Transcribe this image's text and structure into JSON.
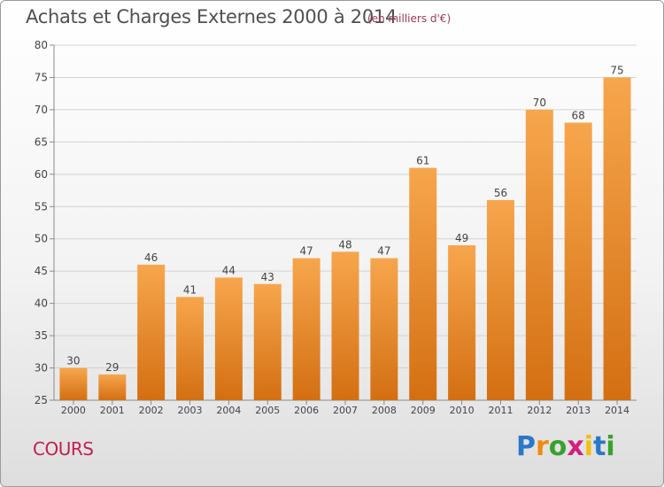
{
  "chart_data": {
    "type": "bar",
    "title": "Achats et Charges Externes 2000 à 2014",
    "unit_note": "(en milliers d'€)",
    "categories": [
      "2000",
      "2001",
      "2002",
      "2003",
      "2004",
      "2005",
      "2006",
      "2007",
      "2008",
      "2009",
      "2010",
      "2011",
      "2012",
      "2013",
      "2014"
    ],
    "values": [
      30,
      29,
      46,
      41,
      44,
      43,
      47,
      48,
      47,
      61,
      49,
      56,
      70,
      68,
      75
    ],
    "ylim": [
      25,
      80
    ],
    "yticks": [
      25,
      30,
      35,
      40,
      45,
      50,
      55,
      60,
      65,
      70,
      75,
      80
    ],
    "grid": true,
    "bar_color": "#f0a040"
  },
  "commune": "COURS",
  "logo": {
    "letters": [
      "P",
      "r",
      "o",
      "x",
      "i",
      "t",
      "i"
    ],
    "colors": [
      "#2a78c8",
      "#f08a10",
      "#3aa030",
      "#d02080",
      "#f0c010",
      "#2a78c8",
      "#3aa030"
    ]
  }
}
